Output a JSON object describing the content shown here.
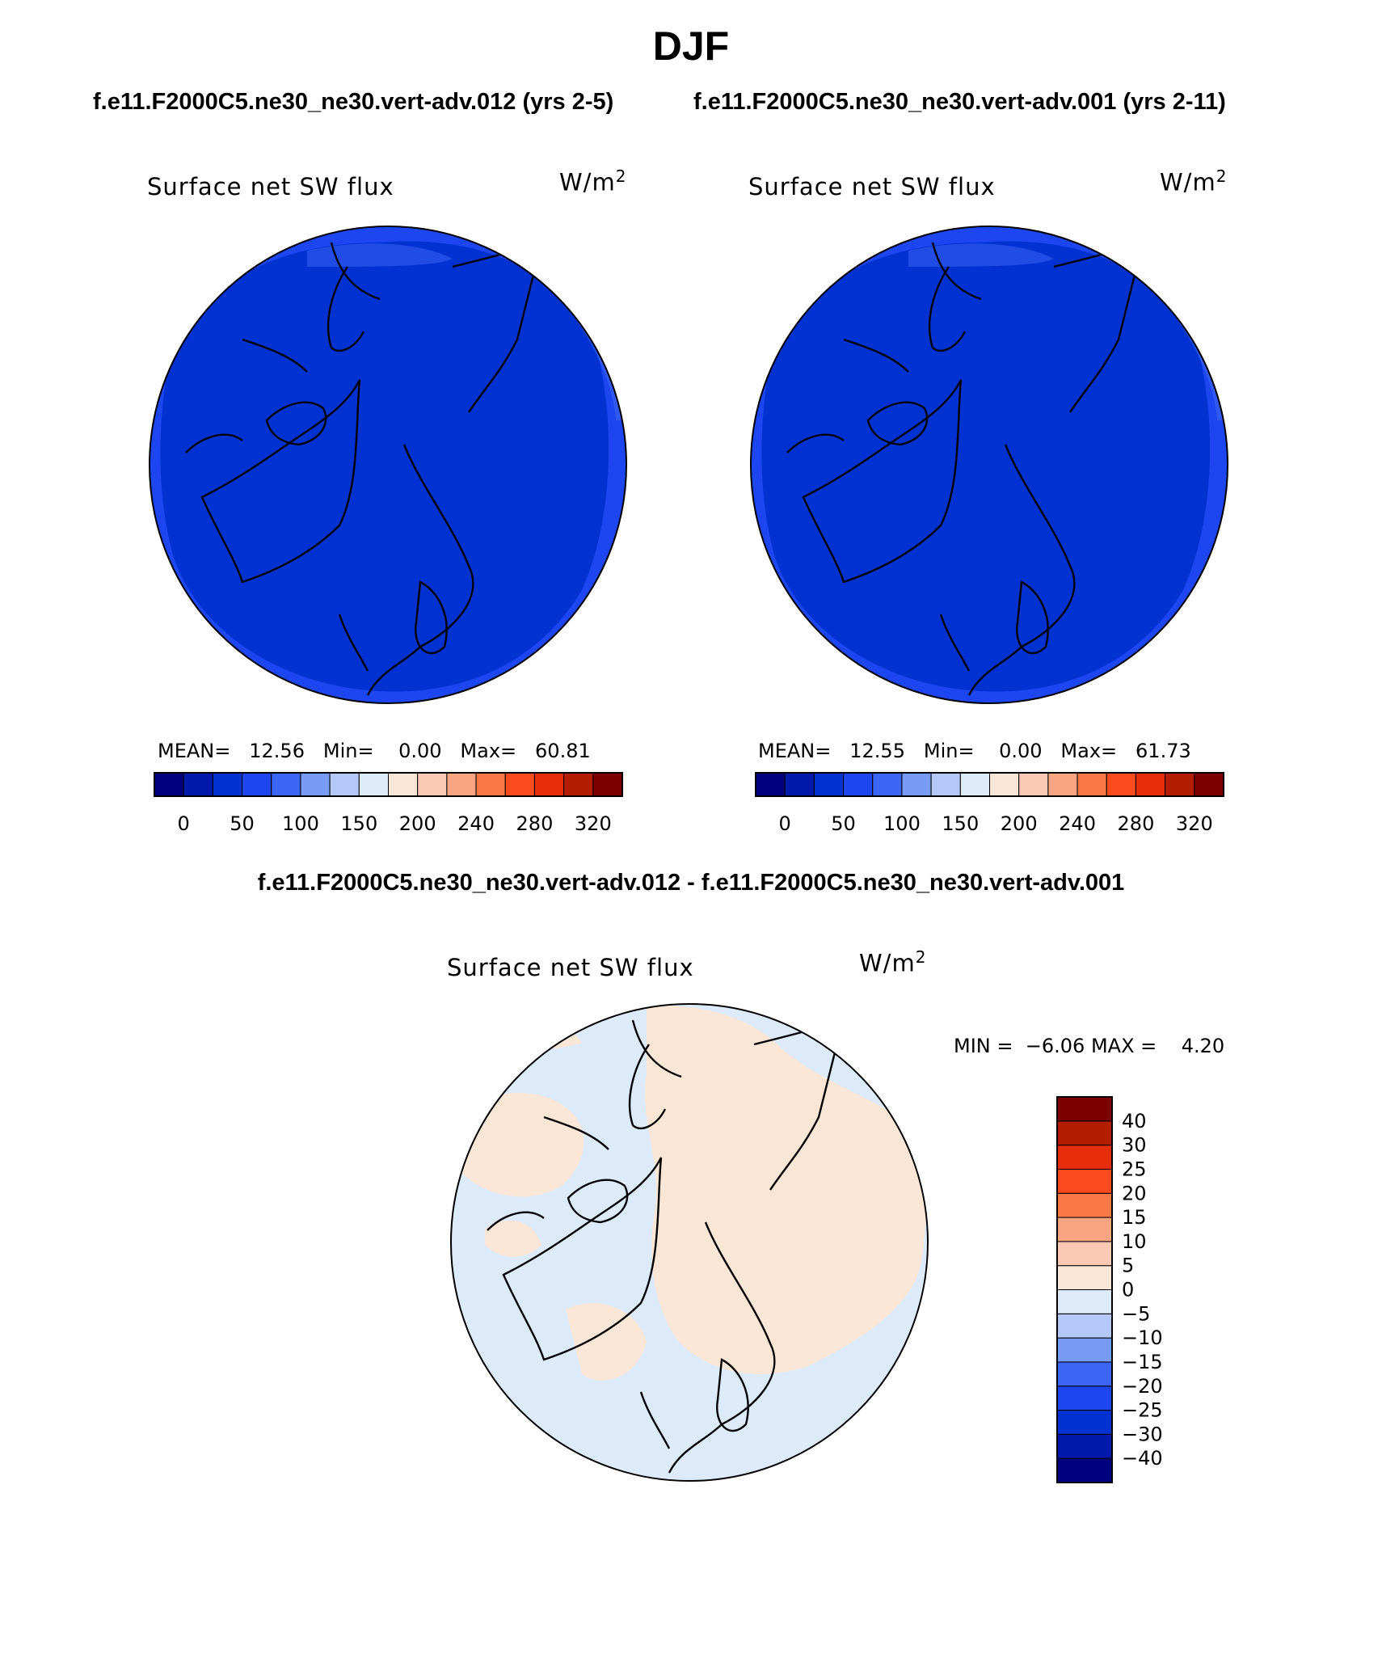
{
  "figure": {
    "season": "DJF",
    "test_case": "f.e11.F2000C5.ne30_ne30.vert-adv.012 (yrs 2-5)",
    "control_case": "f.e11.F2000C5.ne30_ne30.vert-adv.001 (yrs 2-11)",
    "diff_title": "f.e11.F2000C5.ne30_ne30.vert-adv.012 - f.e11.F2000C5.ne30_ne30.vert-adv.001"
  },
  "panels": [
    {
      "variable": "Surface net SW flux",
      "units_base": "W/m",
      "units_exp": "2",
      "stats": {
        "mean_label": "MEAN=",
        "mean": "12.56",
        "min_label": "Min=",
        "min": "0.00",
        "max_label": "Max=",
        "max": "60.81"
      }
    },
    {
      "variable": "Surface net SW flux",
      "units_base": "W/m",
      "units_exp": "2",
      "stats": {
        "mean_label": "MEAN=",
        "mean": "12.55",
        "min_label": "Min=",
        "min": "0.00",
        "max_label": "Max=",
        "max": "61.73"
      }
    },
    {
      "variable": "Surface net SW flux",
      "units_base": "W/m",
      "units_exp": "2",
      "stats": {
        "min_label": "MIN =",
        "min": "−6.06",
        "max_label": "MAX =",
        "max": "4.20"
      }
    }
  ],
  "colorbar_main": {
    "colors": [
      "#00007f",
      "#0019aa",
      "#0032d2",
      "#1e46f0",
      "#3c64f5",
      "#789bf5",
      "#b4c8fa",
      "#dceafa",
      "#fae6d7",
      "#fac8b4",
      "#faa582",
      "#fa7846",
      "#fa4b1e",
      "#e62d0a",
      "#b41e00",
      "#7d0000"
    ],
    "tick_labels": [
      "0",
      "50",
      "100",
      "150",
      "200",
      "240",
      "280",
      "320"
    ]
  },
  "colorbar_diff": {
    "colors": [
      "#00007f",
      "#0019aa",
      "#0032d2",
      "#1e46f0",
      "#3c64f5",
      "#789bf5",
      "#b4c8fa",
      "#dceafa",
      "#fae6d7",
      "#fac8b4",
      "#faa582",
      "#fa7846",
      "#fa4b1e",
      "#e62d0a",
      "#b41e00",
      "#7d0000"
    ],
    "tick_labels": [
      "−40",
      "−30",
      "−25",
      "−20",
      "−15",
      "−10",
      "−5",
      "0",
      "5",
      "10",
      "15",
      "20",
      "25",
      "30",
      "40"
    ]
  }
}
